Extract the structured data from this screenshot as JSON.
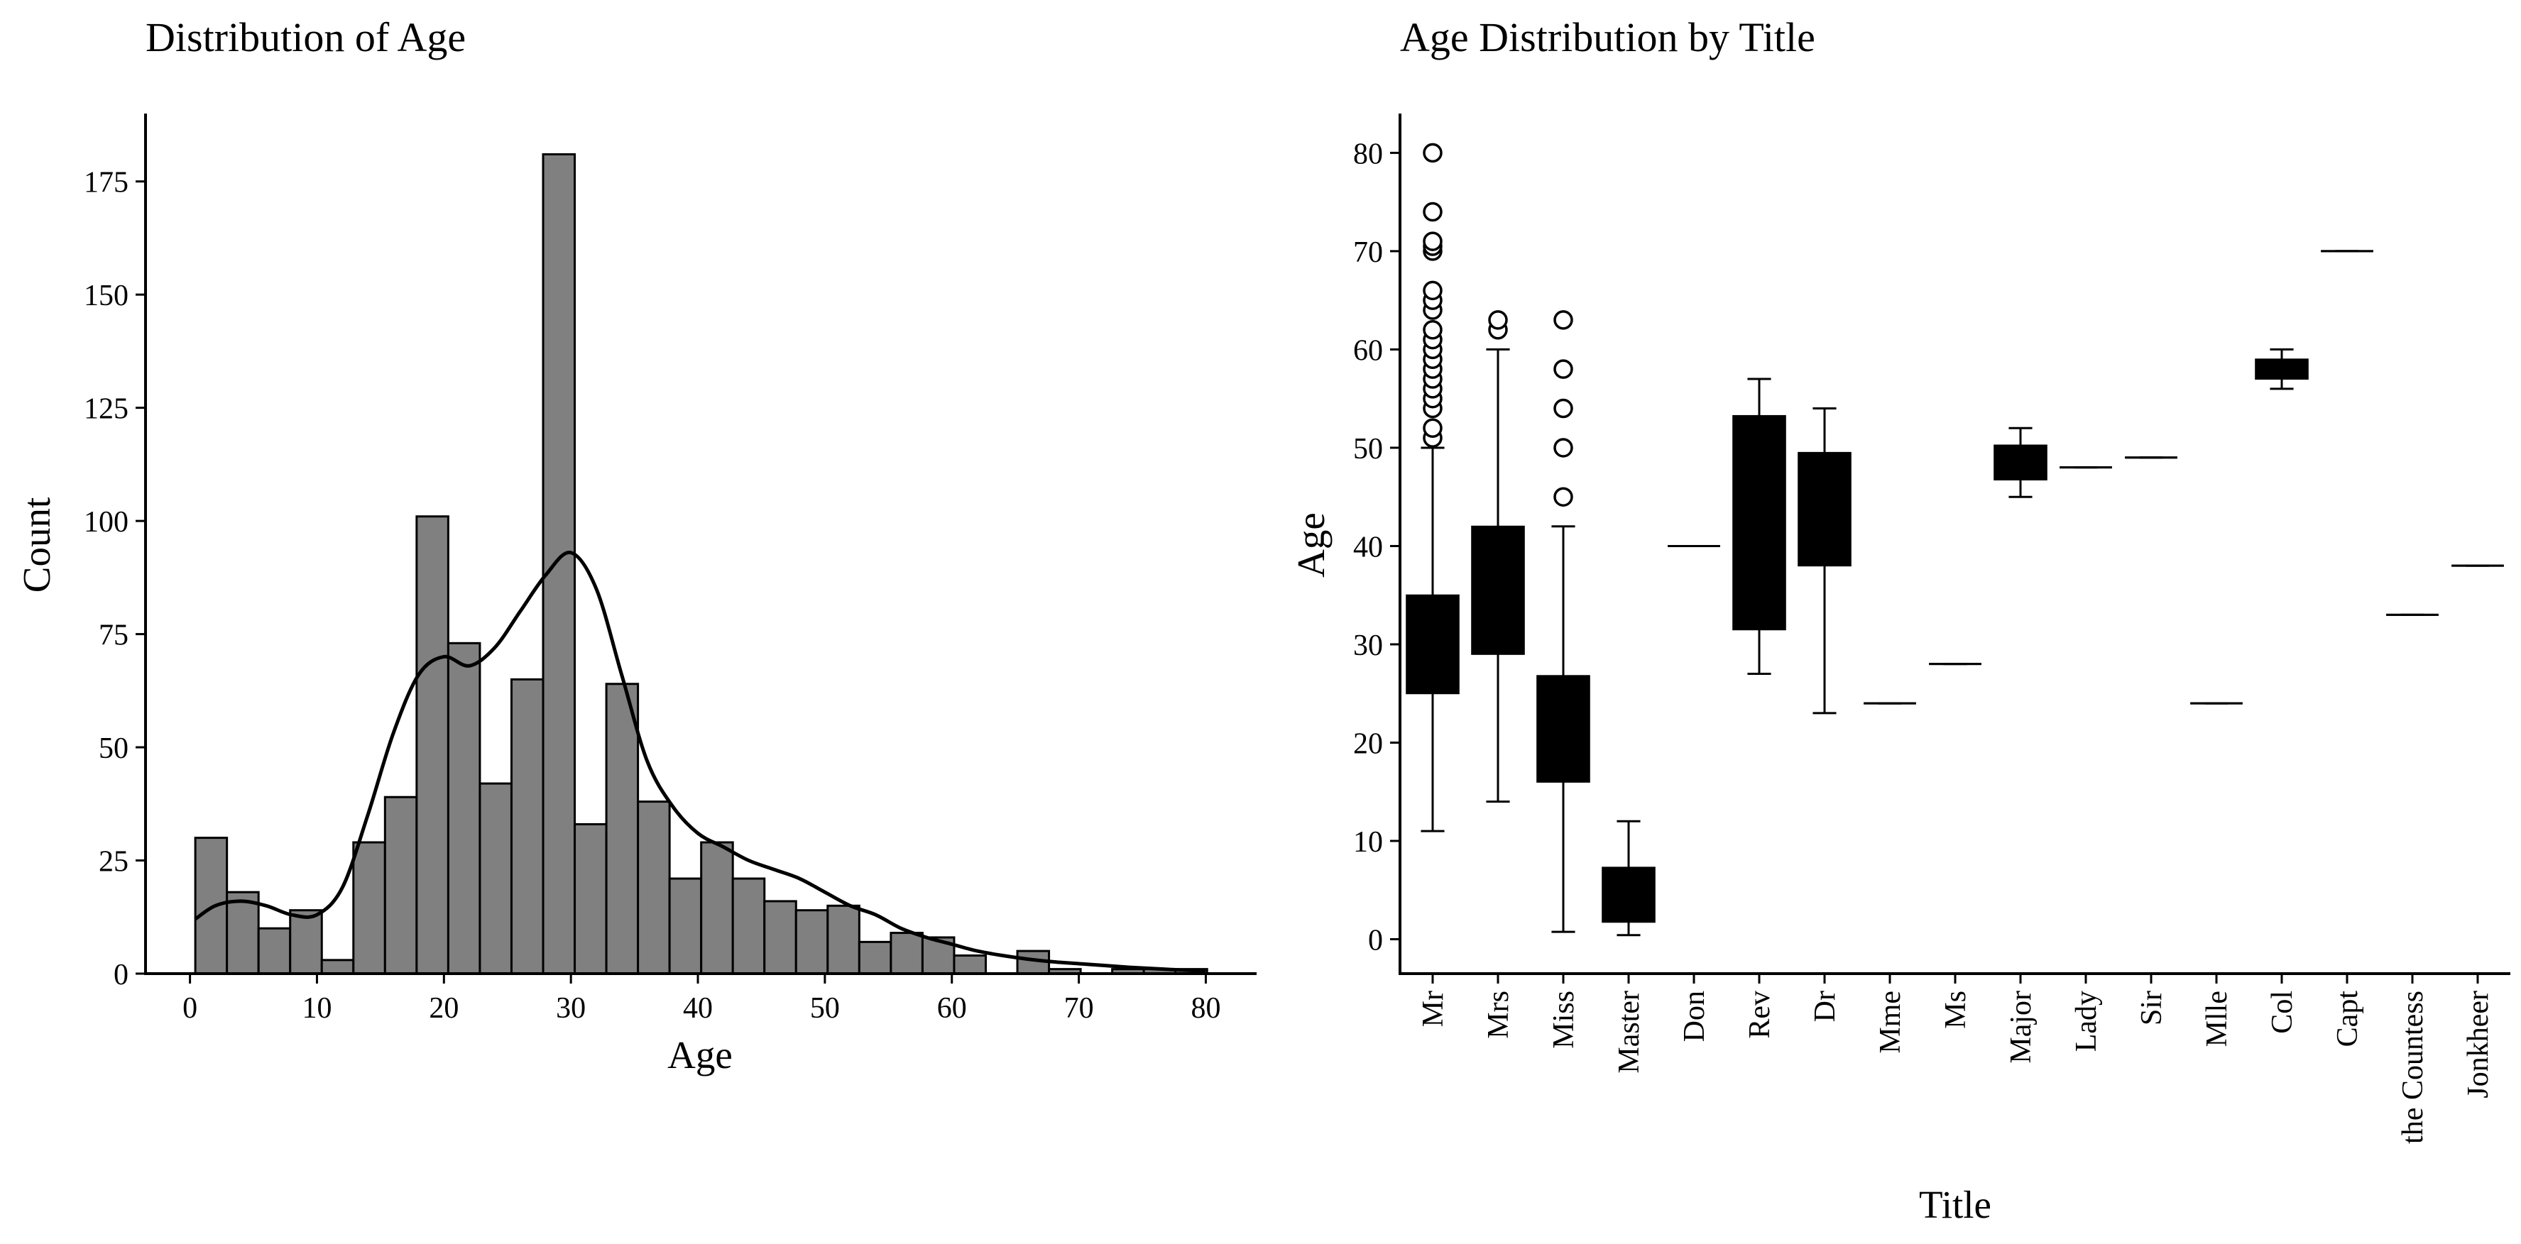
{
  "chart_data": [
    {
      "type": "bar",
      "subtype": "histogram_with_kde",
      "title": "Distribution of Age",
      "xlabel": "Age",
      "ylabel": "Count",
      "xlim": [
        -3.5,
        84
      ],
      "ylim": [
        0,
        190
      ],
      "xticks": [
        0,
        10,
        20,
        30,
        40,
        50,
        60,
        70,
        80
      ],
      "yticks": [
        0,
        25,
        50,
        75,
        100,
        125,
        150,
        175
      ],
      "bar_color": "#808080",
      "edge_color": "#000000",
      "bin_edges": [
        0.42,
        2.91,
        5.4,
        7.89,
        10.38,
        12.87,
        15.36,
        17.85,
        20.34,
        22.83,
        25.32,
        27.81,
        30.3,
        32.79,
        35.28,
        37.77,
        40.26,
        42.75,
        45.24,
        47.73,
        50.22,
        52.71,
        55.2,
        57.69,
        60.18,
        62.67,
        65.16,
        67.65,
        70.14,
        72.63,
        75.12,
        77.61,
        80.1
      ],
      "counts": [
        30,
        18,
        10,
        14,
        3,
        29,
        39,
        101,
        73,
        42,
        65,
        181,
        33,
        64,
        38,
        21,
        29,
        21,
        16,
        14,
        15,
        7,
        9,
        8,
        4,
        0,
        5,
        1,
        0,
        1,
        1,
        1
      ],
      "kde": {
        "x": [
          0.4,
          2,
          4,
          6,
          8,
          10,
          12,
          14,
          16,
          18,
          20,
          22,
          24,
          26,
          28,
          30,
          32,
          34,
          36,
          38,
          40,
          42,
          44,
          46,
          48,
          50,
          52,
          54,
          56,
          58,
          60,
          62,
          64,
          66,
          68,
          70,
          72,
          74,
          76,
          78,
          80
        ],
        "y": [
          12,
          15,
          16,
          15,
          13,
          13,
          19,
          35,
          53,
          66,
          70,
          68,
          72,
          80,
          88,
          93,
          85,
          66,
          47,
          37,
          31,
          28,
          25,
          23,
          21,
          18,
          15,
          13,
          10,
          8,
          6.5,
          5,
          4,
          3.2,
          2.6,
          2.2,
          1.8,
          1.4,
          1.1,
          0.8,
          0.6
        ]
      }
    },
    {
      "type": "box",
      "title": "Age Distribution by Title",
      "xlabel": "Title",
      "ylabel": "Age",
      "ylim": [
        -3.5,
        84
      ],
      "yticks": [
        0,
        10,
        20,
        30,
        40,
        50,
        60,
        70,
        80
      ],
      "box_color": "#000000",
      "categories": [
        "Mr",
        "Mrs",
        "Miss",
        "Master",
        "Don",
        "Rev",
        "Dr",
        "Mme",
        "Ms",
        "Major",
        "Lady",
        "Sir",
        "Mlle",
        "Col",
        "Capt",
        "the Countess",
        "Jonkheer"
      ],
      "boxes": [
        {
          "label": "Mr",
          "whisker_low": 11,
          "q1": 25,
          "median": 30,
          "q3": 35,
          "whisker_high": 50,
          "outliers": [
            51,
            52,
            54,
            55,
            56,
            57,
            58,
            59,
            60,
            61,
            62,
            64,
            65,
            66,
            70,
            70.5,
            71,
            74,
            80
          ]
        },
        {
          "label": "Mrs",
          "whisker_low": 14,
          "q1": 29,
          "median": 35,
          "q3": 42,
          "whisker_high": 60,
          "outliers": [
            62,
            63
          ]
        },
        {
          "label": "Miss",
          "whisker_low": 0.75,
          "q1": 16,
          "median": 22,
          "q3": 26.8,
          "whisker_high": 42,
          "outliers": [
            45,
            50,
            54,
            58,
            63
          ]
        },
        {
          "label": "Master",
          "whisker_low": 0.42,
          "q1": 1.75,
          "median": 4,
          "q3": 7.3,
          "whisker_high": 12,
          "outliers": []
        },
        {
          "label": "Don",
          "whisker_low": 40,
          "q1": 40,
          "median": 40,
          "q3": 40,
          "whisker_high": 40,
          "outliers": []
        },
        {
          "label": "Rev",
          "whisker_low": 27,
          "q1": 31.5,
          "median": 46.5,
          "q3": 53.25,
          "whisker_high": 57,
          "outliers": []
        },
        {
          "label": "Dr",
          "whisker_low": 23,
          "q1": 38,
          "median": 46.5,
          "q3": 49.5,
          "whisker_high": 54,
          "outliers": []
        },
        {
          "label": "Mme",
          "whisker_low": 24,
          "q1": 24,
          "median": 24,
          "q3": 24,
          "whisker_high": 24,
          "outliers": []
        },
        {
          "label": "Ms",
          "whisker_low": 28,
          "q1": 28,
          "median": 28,
          "q3": 28,
          "whisker_high": 28,
          "outliers": []
        },
        {
          "label": "Major",
          "whisker_low": 45,
          "q1": 46.75,
          "median": 48.5,
          "q3": 50.25,
          "whisker_high": 52,
          "outliers": []
        },
        {
          "label": "Lady",
          "whisker_low": 48,
          "q1": 48,
          "median": 48,
          "q3": 48,
          "whisker_high": 48,
          "outliers": []
        },
        {
          "label": "Sir",
          "whisker_low": 49,
          "q1": 49,
          "median": 49,
          "q3": 49,
          "whisker_high": 49,
          "outliers": []
        },
        {
          "label": "Mlle",
          "whisker_low": 24,
          "q1": 24,
          "median": 24,
          "q3": 24,
          "whisker_high": 24,
          "outliers": []
        },
        {
          "label": "Col",
          "whisker_low": 56,
          "q1": 57,
          "median": 58,
          "q3": 59,
          "whisker_high": 60,
          "outliers": []
        },
        {
          "label": "Capt",
          "whisker_low": 70,
          "q1": 70,
          "median": 70,
          "q3": 70,
          "whisker_high": 70,
          "outliers": []
        },
        {
          "label": "the Countess",
          "whisker_low": 33,
          "q1": 33,
          "median": 33,
          "q3": 33,
          "whisker_high": 33,
          "outliers": []
        },
        {
          "label": "Jonkheer",
          "whisker_low": 38,
          "q1": 38,
          "median": 38,
          "q3": 38,
          "whisker_high": 38,
          "outliers": []
        }
      ]
    }
  ]
}
